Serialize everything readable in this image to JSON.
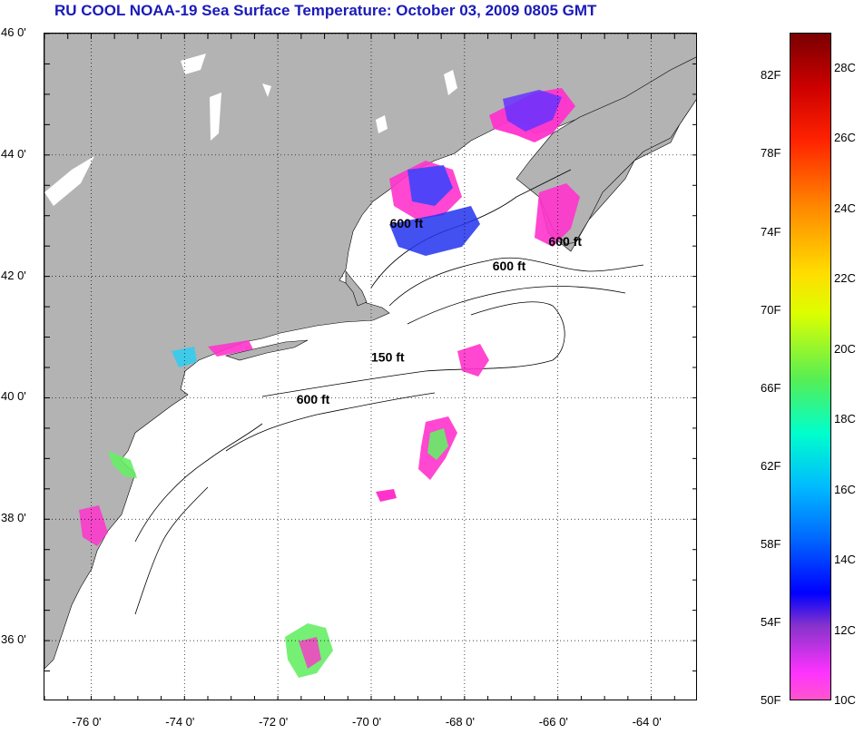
{
  "title": "RU COOL  NOAA-19  Sea Surface Temperature:  October 03, 2009 0805 GMT",
  "map": {
    "lat_ticks": [
      "46 0'",
      "44 0'",
      "42 0'",
      "40 0'",
      "38 0'",
      "36 0'"
    ],
    "lon_ticks": [
      "-76 0'",
      "-74 0'",
      "-72 0'",
      "-70 0'",
      "-68 0'",
      "-66 0'",
      "-64 0'"
    ],
    "lat_range": [
      35.0,
      46.0
    ],
    "lon_range": [
      -77.0,
      -63.0
    ],
    "isobath_labels": [
      {
        "text": "600 ft",
        "lon": -69.6,
        "lat": 42.8
      },
      {
        "text": "600 ft",
        "lon": -66.2,
        "lat": 42.5
      },
      {
        "text": "600 ft",
        "lon": -67.4,
        "lat": 42.1
      },
      {
        "text": "150 ft",
        "lon": -70.0,
        "lat": 40.6
      },
      {
        "text": "600 ft",
        "lon": -71.6,
        "lat": 39.9
      }
    ],
    "colors": {
      "land": "#b3b3b3",
      "water": "#ffffff",
      "grid": "#000000"
    }
  },
  "colorbar": {
    "f_labels": [
      "82F",
      "78F",
      "74F",
      "70F",
      "66F",
      "62F",
      "58F",
      "54F",
      "50F"
    ],
    "c_labels": [
      "28C",
      "26C",
      "24C",
      "22C",
      "20C",
      "18C",
      "16C",
      "14C",
      "12C",
      "10C"
    ],
    "range_c": [
      10,
      29
    ]
  }
}
